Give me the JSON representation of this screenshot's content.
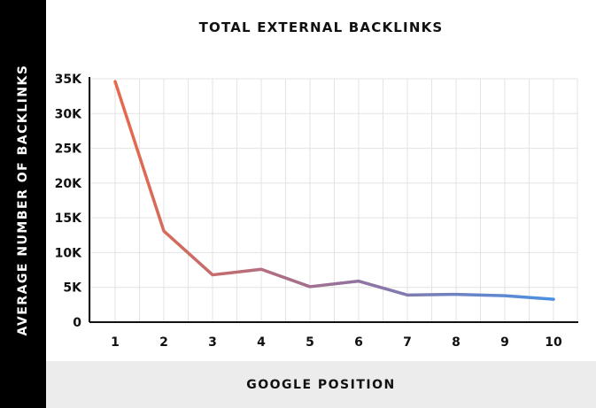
{
  "chart_data": {
    "type": "line",
    "title": "TOTAL EXTERNAL BACKLINKS",
    "xlabel": "GOOGLE POSITION",
    "ylabel": "AVERAGE NUMBER OF BACKLINKS",
    "x": [
      1,
      2,
      3,
      4,
      5,
      6,
      7,
      8,
      9,
      10
    ],
    "series": [
      {
        "values": [
          34600,
          13100,
          6800,
          7600,
          5100,
          5900,
          3900,
          4000,
          3800,
          3300
        ]
      }
    ],
    "ylim": [
      0,
      35000
    ],
    "yticks": [
      0,
      5000,
      10000,
      15000,
      20000,
      25000,
      30000,
      35000
    ],
    "ytick_labels": [
      "0",
      "5K",
      "10K",
      "15K",
      "20K",
      "25K",
      "30K",
      "35K"
    ],
    "xtick_labels": [
      "1",
      "2",
      "3",
      "4",
      "5",
      "6",
      "7",
      "8",
      "9",
      "10"
    ],
    "grid": true,
    "line_gradient": [
      "#e8694a",
      "#9a7098",
      "#4a90e2"
    ]
  }
}
